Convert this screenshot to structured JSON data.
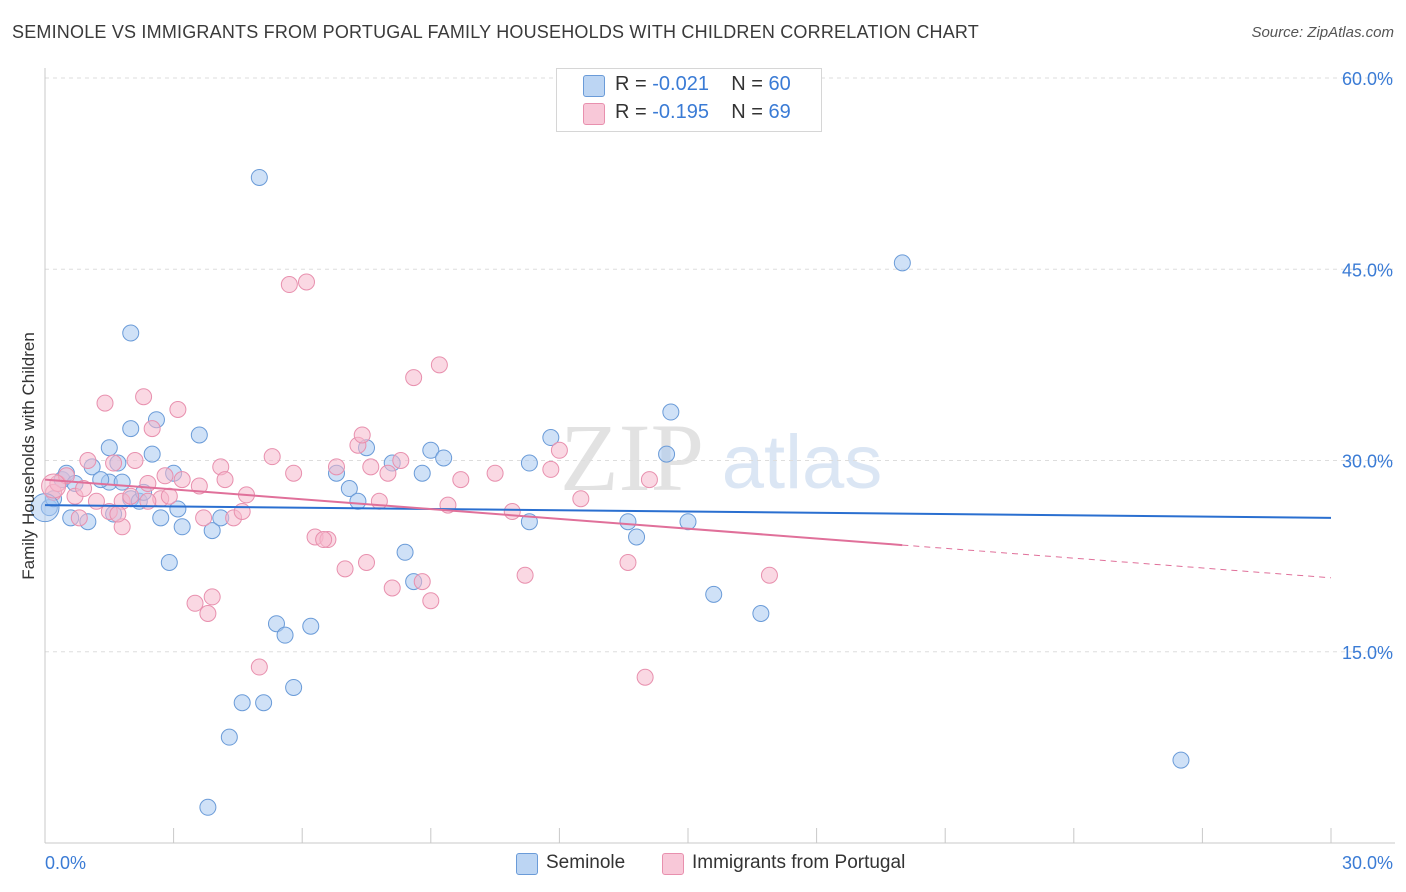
{
  "title": "SEMINOLE VS IMMIGRANTS FROM PORTUGAL FAMILY HOUSEHOLDS WITH CHILDREN CORRELATION CHART",
  "source": "Source: ZipAtlas.com",
  "watermark": {
    "zip": "ZIP",
    "atlas": "atlas"
  },
  "colors": {
    "seminole_fill": "#a8c8f0",
    "seminole_stroke": "#6a9bd8",
    "seminole_line": "#2a6fd0",
    "portugal_fill": "#f5b8cc",
    "portugal_stroke": "#e890ae",
    "portugal_line": "#e0709a",
    "axis_label": "#3a7bd5",
    "grid": "#dddddd"
  },
  "legend_top": [
    {
      "r_label": "R = ",
      "r_value": "-0.021",
      "n_label": "N = ",
      "n_value": "60"
    },
    {
      "r_label": "R = ",
      "r_value": "-0.195",
      "n_label": "N = ",
      "n_value": "69"
    }
  ],
  "chart_data": {
    "type": "scatter",
    "title": "SEMINOLE VS IMMIGRANTS FROM PORTUGAL FAMILY HOUSEHOLDS WITH CHILDREN CORRELATION CHART",
    "xlabel": "",
    "ylabel": "Family Households with Children",
    "xlim": [
      0,
      30
    ],
    "ylim": [
      0,
      60
    ],
    "x_ticks": [
      0,
      3,
      6,
      9,
      12,
      15,
      18,
      21,
      24,
      27,
      30
    ],
    "x_tick_labels": [
      {
        "value": 0,
        "label": "0.0%"
      },
      {
        "value": 30,
        "label": "30.0%"
      }
    ],
    "y_ticks": [
      {
        "value": 15,
        "label": "15.0%"
      },
      {
        "value": 30,
        "label": "30.0%"
      },
      {
        "value": 45,
        "label": "45.0%"
      },
      {
        "value": 60,
        "label": "60.0%"
      }
    ],
    "grid": true,
    "series": [
      {
        "name": "Seminole",
        "r": -0.021,
        "n": 60,
        "trend": {
          "x0": 0,
          "y0": 26.5,
          "x1": 30,
          "y1": 25.5,
          "dashed_from": null
        },
        "points": [
          [
            0.1,
            26.3
          ],
          [
            0.2,
            27.0
          ],
          [
            0.4,
            28.5
          ],
          [
            0.5,
            29.0
          ],
          [
            0.7,
            28.2
          ],
          [
            1.0,
            25.2
          ],
          [
            1.1,
            29.5
          ],
          [
            1.5,
            28.3
          ],
          [
            1.5,
            31.0
          ],
          [
            1.6,
            25.8
          ],
          [
            1.7,
            29.8
          ],
          [
            1.8,
            28.3
          ],
          [
            2.0,
            27.0
          ],
          [
            2.0,
            40.0
          ],
          [
            2.2,
            26.8
          ],
          [
            2.3,
            27.5
          ],
          [
            2.5,
            30.5
          ],
          [
            2.6,
            33.2
          ],
          [
            2.7,
            25.5
          ],
          [
            2.9,
            22.0
          ],
          [
            3.0,
            29.0
          ],
          [
            3.1,
            26.2
          ],
          [
            3.2,
            24.8
          ],
          [
            3.6,
            32.0
          ],
          [
            3.9,
            24.5
          ],
          [
            4.1,
            25.5
          ],
          [
            4.3,
            8.3
          ],
          [
            4.6,
            11.0
          ],
          [
            5.0,
            52.2
          ],
          [
            5.1,
            11.0
          ],
          [
            5.4,
            17.2
          ],
          [
            5.6,
            16.3
          ],
          [
            5.8,
            12.2
          ],
          [
            6.2,
            17.0
          ],
          [
            6.8,
            29.0
          ],
          [
            7.1,
            27.8
          ],
          [
            7.3,
            26.8
          ],
          [
            7.5,
            31.0
          ],
          [
            8.1,
            29.8
          ],
          [
            8.4,
            22.8
          ],
          [
            8.6,
            20.5
          ],
          [
            8.8,
            29.0
          ],
          [
            9.0,
            30.8
          ],
          [
            9.3,
            30.2
          ],
          [
            11.3,
            25.2
          ],
          [
            11.3,
            29.8
          ],
          [
            11.8,
            31.8
          ],
          [
            13.6,
            25.2
          ],
          [
            13.8,
            24.0
          ],
          [
            14.5,
            30.5
          ],
          [
            14.6,
            33.8
          ],
          [
            15.0,
            25.2
          ],
          [
            15.6,
            19.5
          ],
          [
            16.7,
            18.0
          ],
          [
            20.0,
            45.5
          ],
          [
            26.5,
            6.5
          ],
          [
            3.8,
            2.8
          ],
          [
            2.0,
            32.5
          ],
          [
            1.3,
            28.5
          ],
          [
            0.6,
            25.5
          ]
        ]
      },
      {
        "name": "Immigrants from Portugal",
        "r": -0.195,
        "n": 69,
        "trend": {
          "x0": 0,
          "y0": 28.5,
          "x1": 30,
          "y1": 20.8,
          "dashed_from": 20
        },
        "points": [
          [
            0.2,
            27.5
          ],
          [
            0.3,
            28.2
          ],
          [
            0.5,
            28.8
          ],
          [
            0.7,
            27.2
          ],
          [
            0.8,
            25.5
          ],
          [
            1.0,
            30.0
          ],
          [
            1.2,
            26.8
          ],
          [
            1.4,
            34.5
          ],
          [
            1.5,
            26.0
          ],
          [
            1.6,
            29.8
          ],
          [
            1.8,
            26.8
          ],
          [
            1.8,
            24.8
          ],
          [
            2.0,
            27.2
          ],
          [
            2.1,
            30.0
          ],
          [
            2.3,
            35.0
          ],
          [
            2.4,
            28.2
          ],
          [
            2.5,
            32.5
          ],
          [
            2.7,
            27.0
          ],
          [
            2.8,
            28.8
          ],
          [
            2.9,
            27.2
          ],
          [
            3.1,
            34.0
          ],
          [
            3.2,
            28.5
          ],
          [
            3.5,
            18.8
          ],
          [
            3.6,
            28.0
          ],
          [
            3.7,
            25.5
          ],
          [
            3.8,
            18.0
          ],
          [
            3.9,
            19.3
          ],
          [
            4.1,
            29.5
          ],
          [
            4.2,
            28.5
          ],
          [
            4.4,
            25.5
          ],
          [
            4.6,
            26.0
          ],
          [
            4.7,
            27.3
          ],
          [
            5.0,
            13.8
          ],
          [
            5.3,
            30.3
          ],
          [
            5.7,
            43.8
          ],
          [
            5.8,
            29.0
          ],
          [
            6.1,
            44.0
          ],
          [
            6.3,
            24.0
          ],
          [
            6.6,
            23.8
          ],
          [
            6.8,
            29.5
          ],
          [
            7.0,
            21.5
          ],
          [
            7.3,
            31.2
          ],
          [
            7.4,
            32.0
          ],
          [
            7.5,
            22.0
          ],
          [
            7.6,
            29.5
          ],
          [
            7.8,
            26.8
          ],
          [
            8.0,
            29.0
          ],
          [
            8.1,
            20.0
          ],
          [
            8.3,
            30.0
          ],
          [
            8.6,
            36.5
          ],
          [
            8.8,
            20.5
          ],
          [
            9.0,
            19.0
          ],
          [
            9.2,
            37.5
          ],
          [
            9.4,
            26.5
          ],
          [
            9.7,
            28.5
          ],
          [
            10.5,
            29.0
          ],
          [
            10.9,
            26.0
          ],
          [
            11.2,
            21.0
          ],
          [
            11.8,
            29.3
          ],
          [
            12.0,
            30.8
          ],
          [
            12.5,
            27.0
          ],
          [
            13.6,
            22.0
          ],
          [
            14.1,
            28.5
          ],
          [
            14.0,
            13.0
          ],
          [
            16.9,
            21.0
          ],
          [
            1.7,
            25.8
          ],
          [
            2.4,
            26.8
          ],
          [
            0.9,
            27.8
          ],
          [
            6.5,
            23.8
          ]
        ]
      }
    ]
  },
  "legend_bottom": [
    {
      "label": "Seminole"
    },
    {
      "label": "Immigrants from Portugal"
    }
  ]
}
